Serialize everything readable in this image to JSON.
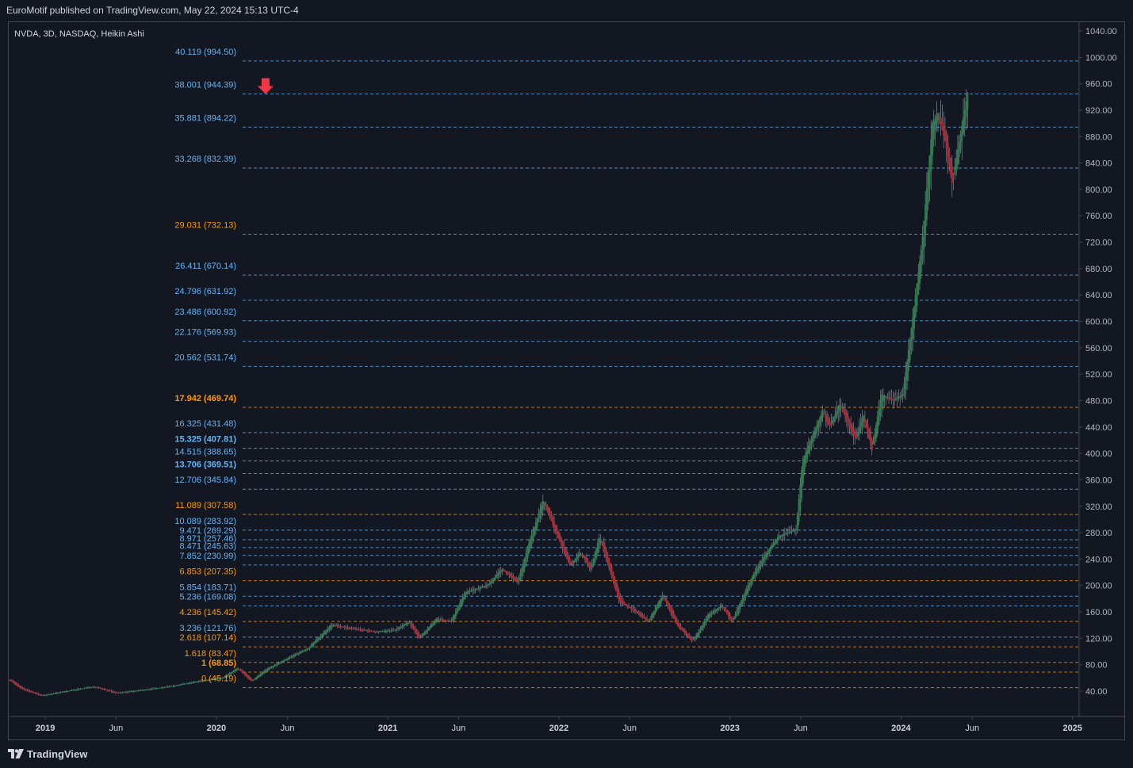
{
  "header": {
    "text": "EuroMotif published on TradingView.com, May 22, 2024 15:13 UTC-4"
  },
  "footer": {
    "brand": "TradingView"
  },
  "chart_data": {
    "type": "candlestick",
    "title": "NVDA, 3D, NASDAQ, Heikin Ashi",
    "y_range": [
      20,
      1060
    ],
    "y_ticks": [
      "1040.00",
      "1000.00",
      "960.00",
      "920.00",
      "880.00",
      "840.00",
      "800.00",
      "760.00",
      "720.00",
      "680.00",
      "640.00",
      "600.00",
      "560.00",
      "520.00",
      "480.00",
      "440.00",
      "400.00",
      "360.00",
      "320.00",
      "280.00",
      "240.00",
      "200.00",
      "160.00",
      "120.00",
      "80.00",
      "40.00"
    ],
    "x_range": [
      "2018-10-15",
      "2025-01-15"
    ],
    "x_ticks": [
      {
        "label": "2019",
        "date": "2019-01-01",
        "bold": true
      },
      {
        "label": "Jun",
        "date": "2019-06-01",
        "bold": false
      },
      {
        "label": "2020",
        "date": "2020-01-01",
        "bold": true
      },
      {
        "label": "Jun",
        "date": "2020-06-01",
        "bold": false
      },
      {
        "label": "2021",
        "date": "2021-01-01",
        "bold": true
      },
      {
        "label": "Jun",
        "date": "2021-06-01",
        "bold": false
      },
      {
        "label": "2022",
        "date": "2022-01-01",
        "bold": true
      },
      {
        "label": "Jun",
        "date": "2022-06-01",
        "bold": false
      },
      {
        "label": "2023",
        "date": "2023-01-01",
        "bold": true
      },
      {
        "label": "Jun",
        "date": "2023-06-01",
        "bold": false
      },
      {
        "label": "2024",
        "date": "2024-01-01",
        "bold": true
      },
      {
        "label": "Jun",
        "date": "2024-06-01",
        "bold": false
      },
      {
        "label": "2025",
        "date": "2025-01-01",
        "bold": true
      }
    ],
    "fib_levels": [
      {
        "ratio": "40.119",
        "price": 994.5,
        "color": "#64b5f6",
        "bold": false
      },
      {
        "ratio": "38.001",
        "price": 944.39,
        "color": "#64b5f6",
        "bold": false
      },
      {
        "ratio": "35.881",
        "price": 894.22,
        "color": "#64b5f6",
        "bold": false
      },
      {
        "ratio": "33.268",
        "price": 832.39,
        "color": "#64b5f6",
        "bold": false
      },
      {
        "ratio": "29.031",
        "price": 732.13,
        "color": "#ff9800",
        "bold": false
      },
      {
        "ratio": "26.411",
        "price": 670.14,
        "color": "#64b5f6",
        "bold": false
      },
      {
        "ratio": "24.796",
        "price": 631.92,
        "color": "#64b5f6",
        "bold": false
      },
      {
        "ratio": "23.486",
        "price": 600.92,
        "color": "#64b5f6",
        "bold": false
      },
      {
        "ratio": "22.176",
        "price": 569.93,
        "color": "#64b5f6",
        "bold": false
      },
      {
        "ratio": "20.562",
        "price": 531.74,
        "color": "#64b5f6",
        "bold": false
      },
      {
        "ratio": "17.942",
        "price": 469.74,
        "color": "#ff9800",
        "bold": true
      },
      {
        "ratio": "16.325",
        "price": 431.48,
        "color": "#64b5f6",
        "bold": false
      },
      {
        "ratio": "15.325",
        "price": 407.81,
        "color": "#64b5f6",
        "bold": true
      },
      {
        "ratio": "14.515",
        "price": 388.65,
        "color": "#64b5f6",
        "bold": false
      },
      {
        "ratio": "13.706",
        "price": 369.51,
        "color": "#64b5f6",
        "bold": true
      },
      {
        "ratio": "12.706",
        "price": 345.84,
        "color": "#64b5f6",
        "bold": false
      },
      {
        "ratio": "11.089",
        "price": 307.58,
        "color": "#ff9800",
        "bold": false
      },
      {
        "ratio": "10.089",
        "price": 283.92,
        "color": "#64b5f6",
        "bold": false
      },
      {
        "ratio": "9.471",
        "price": 269.29,
        "color": "#64b5f6",
        "bold": false
      },
      {
        "ratio": "8.971",
        "price": 257.46,
        "color": "#64b5f6",
        "bold": false
      },
      {
        "ratio": "8.471",
        "price": 245.63,
        "color": "#64b5f6",
        "bold": false
      },
      {
        "ratio": "7.852",
        "price": 230.99,
        "color": "#64b5f6",
        "bold": false
      },
      {
        "ratio": "6.853",
        "price": 207.35,
        "color": "#ff9800",
        "bold": false
      },
      {
        "ratio": "5.854",
        "price": 183.71,
        "color": "#64b5f6",
        "bold": false
      },
      {
        "ratio": "5.236",
        "price": 169.08,
        "color": "#64b5f6",
        "bold": false
      },
      {
        "ratio": "4.236",
        "price": 145.42,
        "color": "#ff9800",
        "bold": false
      },
      {
        "ratio": "3.236",
        "price": 121.76,
        "color": "#64b5f6",
        "bold": false
      },
      {
        "ratio": "2.618",
        "price": 107.14,
        "color": "#ff9800",
        "bold": false
      },
      {
        "ratio": "1.618",
        "price": 83.47,
        "color": "#ff9800",
        "bold": false
      },
      {
        "ratio": "1",
        "price": 68.85,
        "color": "#ff9800",
        "bold": true
      },
      {
        "ratio": "0",
        "price": 45.19,
        "color": "#ff9800",
        "bold": false
      }
    ],
    "top_dashed_price": 1056,
    "arrow": {
      "price": 944.39,
      "date": "2020-04-15",
      "color": "#f23645"
    },
    "price_points": [
      [
        "2018-10-15",
        58
      ],
      [
        "2018-11-10",
        44
      ],
      [
        "2018-12-24",
        33
      ],
      [
        "2019-02-15",
        40
      ],
      [
        "2019-04-15",
        47
      ],
      [
        "2019-06-01",
        37
      ],
      [
        "2019-08-01",
        42
      ],
      [
        "2019-10-01",
        48
      ],
      [
        "2019-12-01",
        56
      ],
      [
        "2020-01-15",
        60
      ],
      [
        "2020-02-15",
        75
      ],
      [
        "2020-03-16",
        55
      ],
      [
        "2020-04-15",
        72
      ],
      [
        "2020-06-01",
        90
      ],
      [
        "2020-07-15",
        105
      ],
      [
        "2020-09-02",
        140
      ],
      [
        "2020-10-15",
        135
      ],
      [
        "2020-12-01",
        130
      ],
      [
        "2021-01-15",
        132
      ],
      [
        "2021-02-15",
        145
      ],
      [
        "2021-03-08",
        120
      ],
      [
        "2021-04-15",
        150
      ],
      [
        "2021-05-15",
        145
      ],
      [
        "2021-06-15",
        190
      ],
      [
        "2021-08-01",
        200
      ],
      [
        "2021-09-01",
        225
      ],
      [
        "2021-10-05",
        205
      ],
      [
        "2021-11-01",
        270
      ],
      [
        "2021-11-29",
        330
      ],
      [
        "2021-12-20",
        290
      ],
      [
        "2022-01-25",
        230
      ],
      [
        "2022-02-15",
        250
      ],
      [
        "2022-03-10",
        225
      ],
      [
        "2022-03-29",
        275
      ],
      [
        "2022-05-10",
        175
      ],
      [
        "2022-06-15",
        160
      ],
      [
        "2022-07-10",
        145
      ],
      [
        "2022-08-10",
        185
      ],
      [
        "2022-09-10",
        140
      ],
      [
        "2022-10-13",
        115
      ],
      [
        "2022-11-15",
        155
      ],
      [
        "2022-12-15",
        170
      ],
      [
        "2023-01-05",
        145
      ],
      [
        "2023-02-15",
        210
      ],
      [
        "2023-03-15",
        245
      ],
      [
        "2023-04-15",
        275
      ],
      [
        "2023-05-22",
        285
      ],
      [
        "2023-06-05",
        390
      ],
      [
        "2023-07-18",
        465
      ],
      [
        "2023-08-01",
        440
      ],
      [
        "2023-08-24",
        475
      ],
      [
        "2023-09-26",
        420
      ],
      [
        "2023-10-12",
        460
      ],
      [
        "2023-10-31",
        405
      ],
      [
        "2023-11-20",
        490
      ],
      [
        "2023-12-15",
        480
      ],
      [
        "2024-01-05",
        490
      ],
      [
        "2024-01-25",
        600
      ],
      [
        "2024-02-15",
        720
      ],
      [
        "2024-03-08",
        900
      ],
      [
        "2024-03-20",
        915
      ],
      [
        "2024-04-05",
        870
      ],
      [
        "2024-04-19",
        810
      ],
      [
        "2024-05-01",
        860
      ],
      [
        "2024-05-22",
        945
      ]
    ],
    "candle_colors": {
      "up": "#26a69a",
      "down": "#ef5350",
      "up_body": "#2e7d4f",
      "down_body": "#b22833",
      "wick": "#b2b5be"
    }
  }
}
